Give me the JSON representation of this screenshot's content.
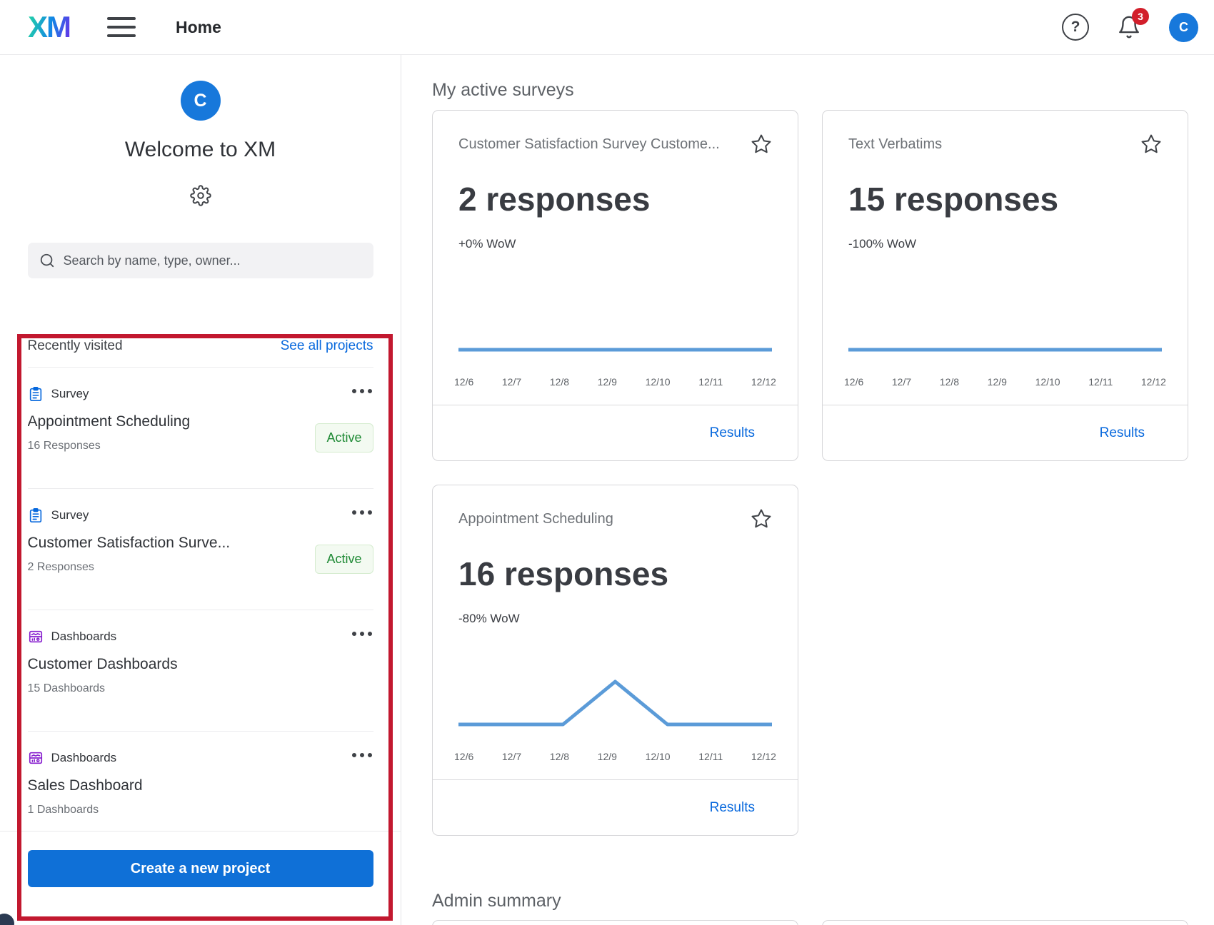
{
  "topbar": {
    "logo": "XM",
    "page_title": "Home",
    "help_glyph": "?",
    "notification_count": "3",
    "avatar_initial": "C"
  },
  "sidebar": {
    "avatar_initial": "C",
    "welcome": "Welcome to XM",
    "search_placeholder": "Search by name, type, owner...",
    "recent": {
      "title": "Recently visited",
      "see_all": "See all projects"
    },
    "items": [
      {
        "type": "Survey",
        "name": "Appointment Scheduling",
        "count": "16 Responses",
        "badge": "Active"
      },
      {
        "type": "Survey",
        "name": "Customer Satisfaction Surve...",
        "count": "2 Responses",
        "badge": "Active"
      },
      {
        "type": "Dashboards",
        "name": "Customer Dashboards",
        "count": "15 Dashboards",
        "badge": ""
      },
      {
        "type": "Dashboards",
        "name": "Sales Dashboard",
        "count": "1 Dashboards",
        "badge": ""
      }
    ],
    "create_button": "Create a new project"
  },
  "main": {
    "active_surveys_heading": "My active surveys",
    "admin_summary_heading": "Admin summary",
    "results_label": "Results"
  },
  "chart_data": [
    {
      "type": "line",
      "title": "Customer Satisfaction Survey Custome...",
      "stat": "2 responses",
      "total_responses": 2,
      "delta": "+0% WoW",
      "x": [
        "12/6",
        "12/7",
        "12/8",
        "12/9",
        "12/10",
        "12/11",
        "12/12"
      ],
      "values": [
        0,
        0,
        0,
        0,
        0,
        0,
        0
      ],
      "grid": false,
      "legend": "none"
    },
    {
      "type": "line",
      "title": "Text Verbatims",
      "stat": "15 responses",
      "total_responses": 15,
      "delta": "-100% WoW",
      "x": [
        "12/6",
        "12/7",
        "12/8",
        "12/9",
        "12/10",
        "12/11",
        "12/12"
      ],
      "values": [
        0,
        0,
        0,
        0,
        0,
        0,
        0
      ],
      "grid": false,
      "legend": "none"
    },
    {
      "type": "line",
      "title": "Appointment Scheduling",
      "stat": "16 responses",
      "total_responses": 16,
      "delta": "-80% WoW",
      "x": [
        "12/6",
        "12/7",
        "12/8",
        "12/9",
        "12/10",
        "12/11",
        "12/12"
      ],
      "values": [
        0,
        0,
        0,
        2,
        0,
        0,
        0
      ],
      "grid": false,
      "legend": "none"
    }
  ],
  "colors": {
    "accent_blue": "#0768DD",
    "button_blue": "#0F70D7",
    "avatar_blue": "#1778DB",
    "chart_line_blue": "#5B9BD8",
    "active_badge_green": "#1F8A35",
    "active_badge_bg": "#F3FAF1",
    "annotation_red": "#C2182F",
    "notification_red": "#D21F2B",
    "survey_icon_blue": "#0768DD",
    "dashboards_icon_purple": "#871FCE"
  }
}
